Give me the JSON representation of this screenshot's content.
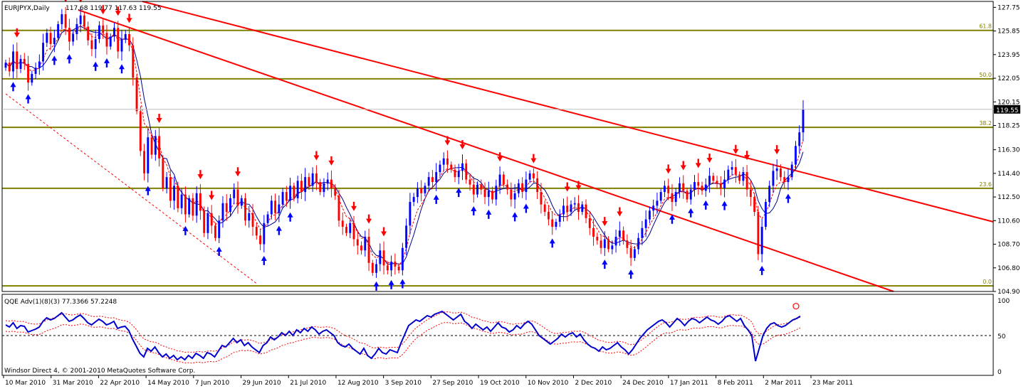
{
  "chart_data": [
    {
      "type": "candlestick",
      "title": "EURJPYX,Daily",
      "ohlc_text": "117.68 119.77 117.63 119.55",
      "last_price": "119.55",
      "ylim": [
        104.9,
        128.0
      ],
      "y_ticks": [
        "127.75",
        "125.85",
        "123.95",
        "122.05",
        "120.15",
        "118.25",
        "116.30",
        "114.40",
        "112.50",
        "110.60",
        "108.70",
        "106.80",
        "104.90"
      ],
      "x_labels": [
        "10 Mar 2010",
        "31 Mar 2010",
        "22 Apr 2010",
        "14 May 2010",
        "7 Jun 2010",
        "29 Jun 2010",
        "21 Jul 2010",
        "12 Aug 2010",
        "3 Sep 2010",
        "27 Sep 2010",
        "19 Oct 2010",
        "10 Nov 2010",
        "2 Dec 2010",
        "24 Dec 2010",
        "17 Jan 2011",
        "8 Feb 2011",
        "2 Mar 2011",
        "23 Mar 2011"
      ],
      "fib_levels": [
        {
          "label": "61.8",
          "value": 125.9
        },
        {
          "label": "50.0",
          "value": 122.0
        },
        {
          "label": "38.2",
          "value": 118.1
        },
        {
          "label": "23.6",
          "value": 113.2
        },
        {
          "label": "0.0",
          "value": 105.35
        }
      ],
      "closes": [
        123.3,
        122.6,
        124.2,
        122.8,
        123.6,
        123.2,
        121.7,
        122.4,
        122.9,
        123.4,
        124.9,
        125.7,
        124.8,
        125.3,
        126.4,
        127.2,
        126.1,
        125.0,
        125.6,
        126.4,
        127.1,
        126.2,
        125.1,
        124.4,
        125.2,
        126.3,
        125.7,
        124.6,
        125.4,
        126.1,
        124.2,
        125.2,
        125.6,
        124.7,
        122.1,
        119.4,
        116.2,
        114.4,
        117.3,
        115.9,
        117.4,
        115.6,
        113.2,
        114.1,
        112.2,
        113.4,
        111.6,
        112.7,
        111.1,
        112.4,
        111.0,
        112.8,
        111.4,
        109.6,
        111.2,
        110.2,
        109.2,
        110.6,
        112.0,
        111.3,
        112.4,
        113.1,
        111.8,
        112.4,
        110.6,
        111.2,
        110.1,
        109.4,
        108.7,
        110.4,
        111.1,
        112.2,
        111.2,
        111.9,
        112.9,
        112.2,
        113.4,
        112.4,
        113.8,
        112.9,
        114.1,
        113.4,
        114.4,
        113.7,
        112.9,
        113.6,
        113.9,
        113.2,
        112.6,
        110.6,
        110.1,
        109.6,
        110.4,
        109.1,
        108.6,
        108.2,
        109.3,
        107.2,
        106.4,
        107.1,
        108.2,
        107.0,
        106.6,
        107.3,
        106.9,
        106.6,
        108.4,
        110.2,
        112.1,
        112.5,
        113.2,
        112.8,
        113.4,
        114.1,
        113.7,
        114.5,
        115.1,
        115.6,
        115.1,
        114.7,
        114.1,
        114.6,
        115.2,
        113.9,
        113.5,
        112.7,
        113.5,
        113.1,
        112.5,
        113.0,
        112.3,
        113.4,
        114.3,
        113.5,
        113.1,
        112.3,
        112.8,
        113.6,
        112.9,
        113.9,
        114.4,
        114.0,
        112.9,
        111.9,
        111.3,
        110.7,
        110.1,
        110.5,
        111.1,
        111.8,
        111.3,
        111.9,
        112.0,
        111.3,
        111.9,
        110.8,
        110.0,
        109.3,
        109.0,
        108.4,
        109.1,
        108.3,
        108.6,
        109.3,
        109.8,
        109.0,
        108.4,
        107.6,
        108.3,
        109.2,
        110.0,
        110.7,
        111.4,
        111.8,
        112.2,
        112.9,
        113.4,
        112.8,
        112.1,
        112.9,
        113.6,
        113.0,
        112.3,
        113.1,
        113.7,
        113.4,
        113.0,
        113.5,
        114.2,
        113.8,
        113.6,
        113.2,
        113.9,
        114.7,
        114.9,
        114.3,
        113.8,
        114.5,
        113.1,
        112.5,
        111.3,
        107.9,
        110.1,
        112.1,
        113.4,
        114.6,
        114.8,
        114.1,
        113.7,
        114.1,
        115.1,
        116.6,
        117.7,
        119.55
      ],
      "qqe_label": "QQE Adv(1)(8)(3) 77.3366 57.2248",
      "qqe_ylim": [
        0,
        100
      ],
      "qqe_y_ticks": [
        "100",
        "50",
        "0"
      ],
      "qqe_reference": 50,
      "qqe_values": [
        65,
        62,
        68,
        60,
        64,
        63,
        55,
        57,
        59,
        62,
        70,
        75,
        72,
        74,
        78,
        82,
        76,
        70,
        72,
        76,
        79,
        74,
        68,
        65,
        69,
        73,
        70,
        65,
        67,
        70,
        60,
        62,
        63,
        57,
        45,
        35,
        25,
        20,
        32,
        28,
        34,
        26,
        20,
        24,
        18,
        22,
        16,
        20,
        16,
        22,
        18,
        25,
        22,
        18,
        26,
        24,
        20,
        28,
        36,
        34,
        40,
        46,
        40,
        44,
        36,
        40,
        34,
        30,
        26,
        36,
        40,
        48,
        44,
        48,
        54,
        50,
        56,
        50,
        58,
        54,
        60,
        56,
        62,
        58,
        52,
        56,
        58,
        54,
        50,
        40,
        36,
        34,
        38,
        32,
        28,
        24,
        32,
        22,
        18,
        24,
        32,
        26,
        24,
        30,
        28,
        26,
        40,
        52,
        64,
        68,
        72,
        70,
        74,
        78,
        76,
        80,
        82,
        84,
        80,
        76,
        72,
        76,
        80,
        70,
        66,
        60,
        66,
        62,
        58,
        62,
        56,
        62,
        68,
        62,
        60,
        55,
        58,
        64,
        60,
        66,
        70,
        66,
        58,
        50,
        46,
        42,
        38,
        42,
        46,
        52,
        48,
        52,
        54,
        48,
        52,
        44,
        38,
        34,
        32,
        28,
        34,
        30,
        32,
        36,
        40,
        34,
        30,
        24,
        30,
        38,
        46,
        52,
        58,
        62,
        66,
        70,
        72,
        68,
        62,
        68,
        74,
        70,
        64,
        70,
        74,
        72,
        68,
        72,
        76,
        72,
        70,
        66,
        70,
        76,
        78,
        74,
        70,
        74,
        64,
        58,
        50,
        14,
        32,
        50,
        60,
        66,
        68,
        64,
        62,
        64,
        68,
        72,
        74,
        77.3366
      ],
      "qqe_slow_value": 57.2248
    }
  ],
  "footer_text": "Windsor Direct 4, © 2001-2010 MetaQuotes Software Corp."
}
